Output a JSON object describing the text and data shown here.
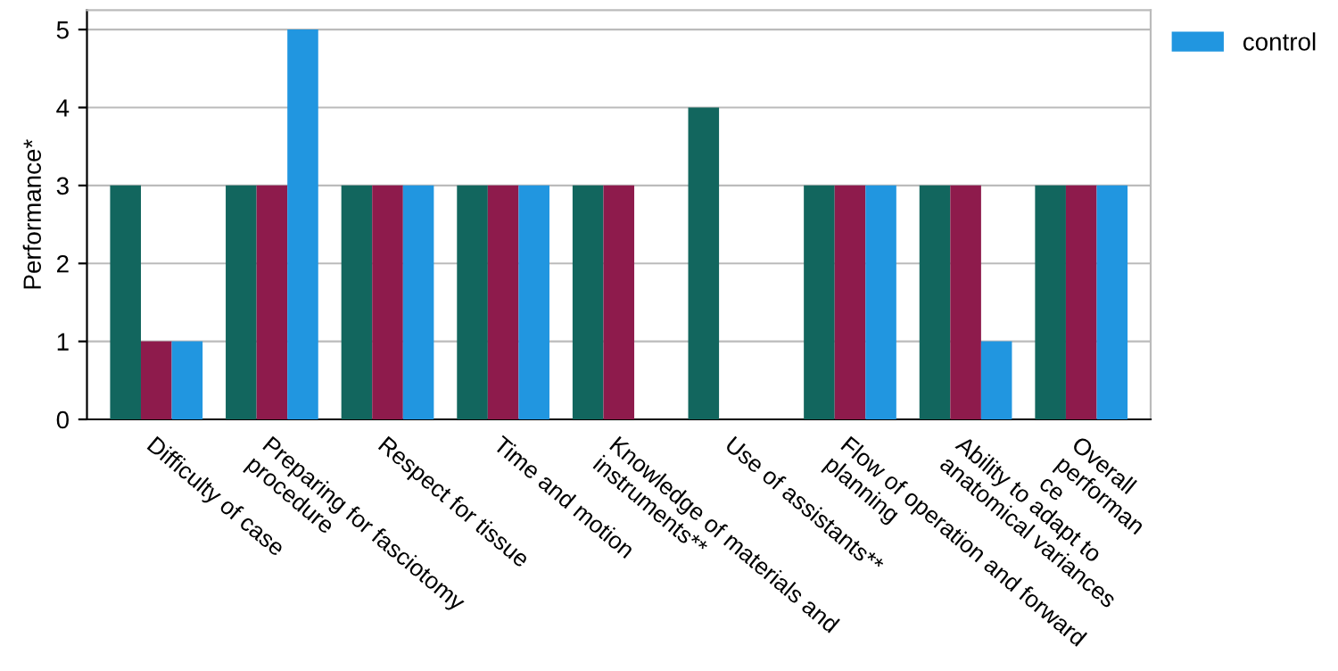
{
  "chart_data": {
    "type": "bar",
    "ylabel": "Performance*",
    "categories": [
      "Difficulty of case",
      "Preparing for fasciotomy\nprocedure",
      "Respect for tissue",
      "Time and motion",
      "Knowledge of materials and\ninstruments**",
      "Use of assistants**",
      "Flow of operation and forward\nplanning",
      "Ability to adapt to\nanatomical variances",
      "Overall\nperforman\nce"
    ],
    "series": [
      {
        "color": "#12665e",
        "values": [
          3,
          3,
          3,
          3,
          3,
          4,
          3,
          3,
          3
        ]
      },
      {
        "color": "#8e1b4c",
        "values": [
          1,
          3,
          3,
          3,
          3,
          null,
          3,
          3,
          3
        ]
      },
      {
        "name": "control",
        "color": "#2196e0",
        "values": [
          1,
          5,
          3,
          3,
          null,
          null,
          3,
          1,
          3
        ]
      }
    ],
    "ylim": [
      0,
      5.25
    ],
    "yticks": [
      0,
      1,
      2,
      3,
      4,
      5
    ],
    "grid": "y",
    "legend": "top right"
  }
}
